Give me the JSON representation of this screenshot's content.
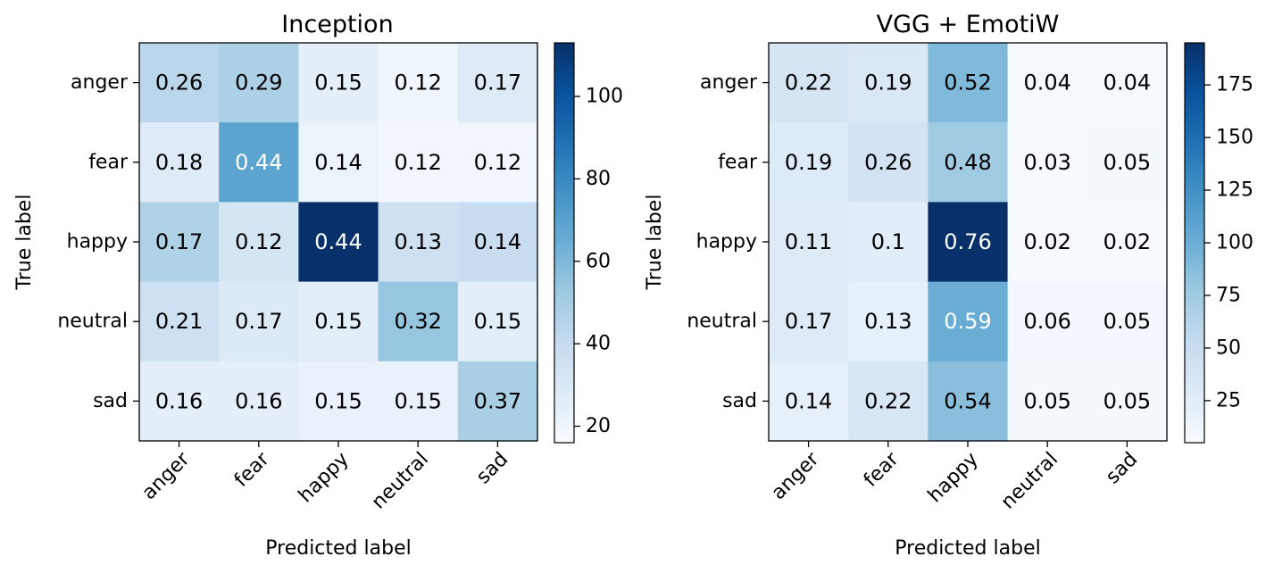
{
  "chart_data": [
    {
      "type": "heatmap",
      "title": "Inception",
      "xlabel": "Predicted label",
      "ylabel": "True label",
      "x_categories": [
        "anger",
        "fear",
        "happy",
        "neutral",
        "sad"
      ],
      "y_categories": [
        "anger",
        "fear",
        "happy",
        "neutral",
        "sad"
      ],
      "values": [
        [
          0.26,
          0.29,
          0.15,
          0.12,
          0.17
        ],
        [
          0.18,
          0.44,
          0.14,
          0.12,
          0.12
        ],
        [
          0.17,
          0.12,
          0.44,
          0.13,
          0.14
        ],
        [
          0.21,
          0.17,
          0.15,
          0.32,
          0.15
        ],
        [
          0.16,
          0.16,
          0.15,
          0.15,
          0.37
        ]
      ],
      "cell_labels": [
        [
          "0.26",
          "0.29",
          "0.15",
          "0.12",
          "0.17"
        ],
        [
          "0.18",
          "0.44",
          "0.14",
          "0.12",
          "0.12"
        ],
        [
          "0.17",
          "0.12",
          "0.44",
          "0.13",
          "0.14"
        ],
        [
          "0.21",
          "0.17",
          "0.15",
          "0.32",
          "0.15"
        ],
        [
          "0.16",
          "0.16",
          "0.15",
          "0.15",
          "0.37"
        ]
      ],
      "counts": [
        [
          44,
          48,
          25,
          20,
          28
        ],
        [
          28,
          69,
          22,
          19,
          19
        ],
        [
          47,
          33,
          113,
          36,
          39
        ],
        [
          36,
          29,
          26,
          54,
          26
        ],
        [
          25,
          25,
          23,
          23,
          49
        ]
      ],
      "colorbar": {
        "colormap": "Blues",
        "range": [
          16,
          113
        ],
        "ticks": [
          20,
          40,
          60,
          80,
          100
        ],
        "tick_labels": [
          "20",
          "40",
          "60",
          "80",
          "100"
        ]
      }
    },
    {
      "type": "heatmap",
      "title": "VGG + EmotiW",
      "xlabel": "Predicted label",
      "ylabel": "True label",
      "x_categories": [
        "anger",
        "fear",
        "happy",
        "neutral",
        "sad"
      ],
      "y_categories": [
        "anger",
        "fear",
        "happy",
        "neutral",
        "sad"
      ],
      "values": [
        [
          0.22,
          0.19,
          0.52,
          0.04,
          0.04
        ],
        [
          0.19,
          0.26,
          0.48,
          0.03,
          0.05
        ],
        [
          0.11,
          0.1,
          0.76,
          0.02,
          0.02
        ],
        [
          0.17,
          0.13,
          0.59,
          0.06,
          0.05
        ],
        [
          0.14,
          0.22,
          0.54,
          0.05,
          0.05
        ]
      ],
      "cell_labels": [
        [
          "0.22",
          "0.19",
          "0.52",
          "0.04",
          "0.04"
        ],
        [
          "0.19",
          "0.26",
          "0.48",
          "0.03",
          "0.05"
        ],
        [
          "0.11",
          "0.1",
          "0.76",
          "0.02",
          "0.02"
        ],
        [
          "0.17",
          "0.13",
          "0.59",
          "0.06",
          "0.05"
        ],
        [
          "0.14",
          "0.22",
          "0.54",
          "0.05",
          "0.05"
        ]
      ],
      "counts": [
        [
          38,
          33,
          90,
          7,
          7
        ],
        [
          30,
          40,
          75,
          5,
          8
        ],
        [
          29,
          26,
          195,
          5,
          5
        ],
        [
          29,
          22,
          101,
          10,
          9
        ],
        [
          22,
          35,
          86,
          8,
          8
        ]
      ],
      "colorbar": {
        "colormap": "Blues",
        "range": [
          5,
          195
        ],
        "ticks": [
          25,
          50,
          75,
          100,
          125,
          150,
          175
        ],
        "tick_labels": [
          "25",
          "50",
          "75",
          "100",
          "125",
          "150",
          "175"
        ]
      }
    }
  ]
}
